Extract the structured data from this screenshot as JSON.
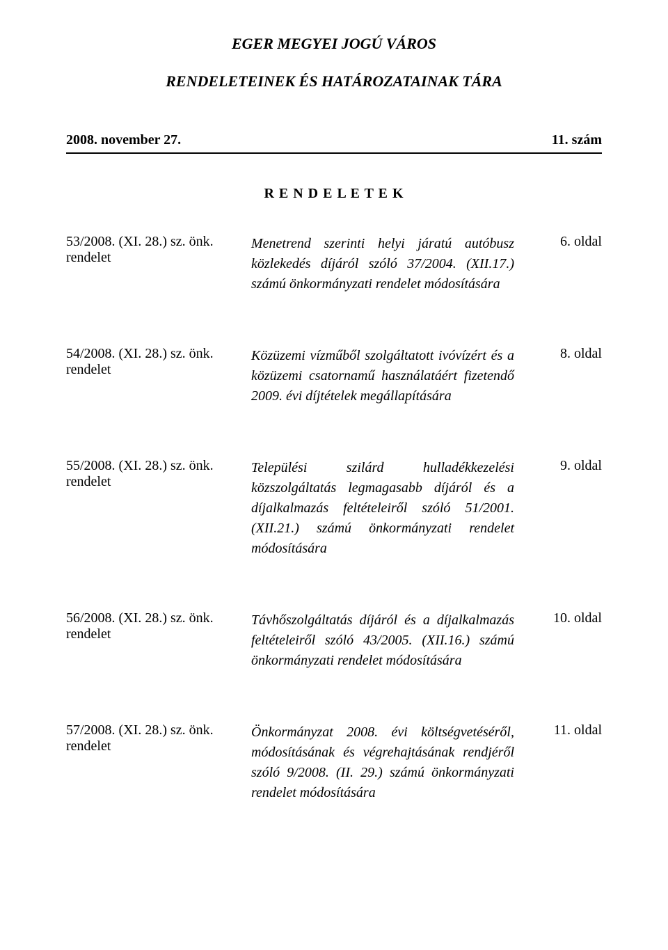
{
  "header": {
    "title": "EGER MEGYEI JOGÚ VÁROS",
    "subtitle": "RENDELETEINEK  ÉS  HATÁROZATAINAK  TÁRA",
    "date": "2008. november 27.",
    "issue": "11. szám"
  },
  "section_heading": "R E N D E L E T E K",
  "entries": [
    {
      "ref": "53/2008. (XI. 28.) sz. önk. rendelet",
      "desc": "Menetrend szerinti helyi járatú autóbusz közlekedés díjáról szóló 37/2004. (XII.17.) számú önkormányzati rendelet módosítására",
      "page": "6. oldal"
    },
    {
      "ref": "54/2008. (XI. 28.) sz. önk. rendelet",
      "desc": "Közüzemi vízműből szolgáltatott ivóvízért és a közüzemi csatornamű használatáért fizetendő 2009. évi díjtételek megállapítására",
      "page": "8. oldal"
    },
    {
      "ref": "55/2008. (XI. 28.) sz. önk. rendelet",
      "desc": "Települési szilárd hulladékkezelési közszolgáltatás legmagasabb díjáról és a díjalkalmazás feltételeiről szóló 51/2001. (XII.21.) számú önkormányzati rendelet módosítására",
      "page": "9. oldal"
    },
    {
      "ref": "56/2008. (XI. 28.) sz. önk. rendelet",
      "desc": "Távhőszolgáltatás díjáról és a díjalkalmazás feltételeiről szóló 43/2005. (XII.16.) számú önkormányzati rendelet módosítására",
      "page": "10. oldal"
    },
    {
      "ref": "57/2008. (XI. 28.) sz. önk. rendelet",
      "desc": "Önkormányzat 2008. évi költségvetéséről, módosításának és végrehajtásának rendjéről szóló 9/2008. (II. 29.) számú önkormányzati rendelet módosítására",
      "page": "11. oldal"
    }
  ]
}
